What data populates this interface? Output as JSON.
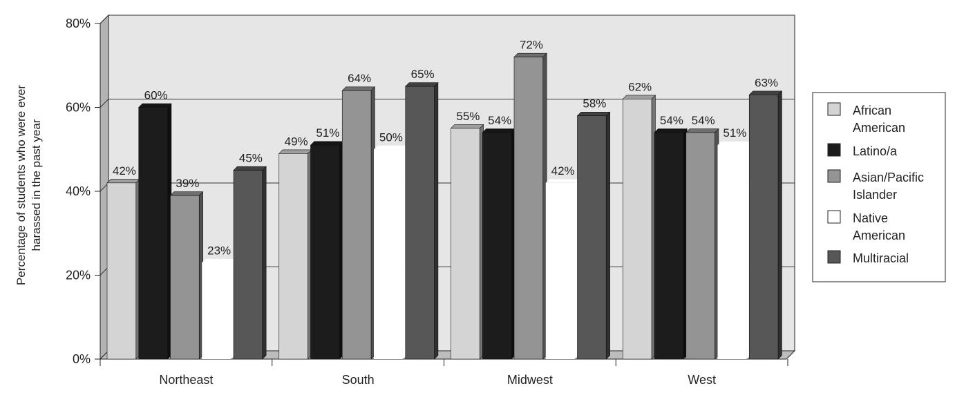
{
  "chart_data": {
    "type": "bar",
    "title": "",
    "xlabel": "",
    "ylabel": "Percentage of students who were ever harassed in the past year",
    "ylabel_lines": [
      "Percentage of students who were ever",
      "harassed in the past year"
    ],
    "ylim": [
      0,
      80
    ],
    "yticks": [
      "0%",
      "20%",
      "40%",
      "60%",
      "80%"
    ],
    "ytick_values": [
      0,
      20,
      40,
      60,
      80
    ],
    "grid": true,
    "legend_position": "right",
    "categories": [
      "Northeast",
      "South",
      "Midwest",
      "West"
    ],
    "series": [
      {
        "name": "African American",
        "legend_lines": [
          "African",
          "American"
        ],
        "values": [
          42,
          49,
          55,
          62
        ],
        "labels": [
          "42%",
          "49%",
          "55%",
          "62%"
        ],
        "color": "#d4d4d4"
      },
      {
        "name": "Latino/a",
        "legend_lines": [
          "Latino/a"
        ],
        "values": [
          60,
          51,
          54,
          54
        ],
        "labels": [
          "60%",
          "51%",
          "54%",
          "54%"
        ],
        "color": "#1c1c1c"
      },
      {
        "name": "Asian/Pacific Islander",
        "legend_lines": [
          "Asian/Pacific",
          "Islander"
        ],
        "values": [
          39,
          64,
          72,
          54
        ],
        "labels": [
          "39%",
          "64%",
          "72%",
          "54%"
        ],
        "color": "#949494"
      },
      {
        "name": "Native American",
        "legend_lines": [
          "Native",
          "American"
        ],
        "values": [
          23,
          50,
          42,
          51
        ],
        "labels": [
          "23%",
          "50%",
          "42%",
          "51%"
        ],
        "color": "#ffffff"
      },
      {
        "name": "Multiracial",
        "legend_lines": [
          "Multiracial"
        ],
        "values": [
          45,
          65,
          58,
          63
        ],
        "labels": [
          "45%",
          "65%",
          "58%",
          "63%"
        ],
        "color": "#575757"
      }
    ]
  }
}
